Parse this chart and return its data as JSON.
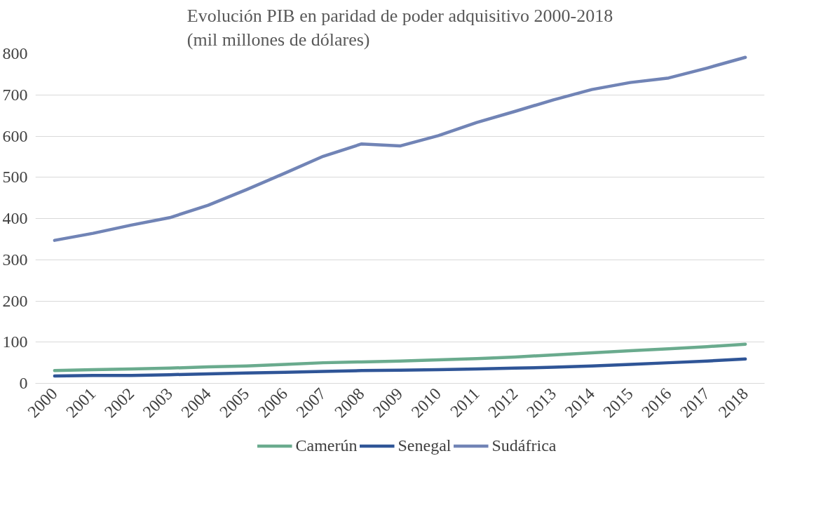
{
  "chart_data": {
    "type": "line",
    "title": "Evolución PIB en paridad de poder adquisitivo 2000-2018\n(mil millones de dólares)",
    "categories": [
      "2000",
      "2001",
      "2002",
      "2003",
      "2004",
      "2005",
      "2006",
      "2007",
      "2008",
      "2009",
      "2010",
      "2011",
      "2012",
      "2013",
      "2014",
      "2015",
      "2016",
      "2017",
      "2018"
    ],
    "series": [
      {
        "name": "Camerún",
        "color": "#6aab8e",
        "values": [
          31,
          33,
          35,
          37,
          40,
          42,
          46,
          50,
          52,
          54,
          57,
          60,
          64,
          69,
          74,
          79,
          84,
          89,
          95
        ]
      },
      {
        "name": "Senegal",
        "color": "#2f5597",
        "values": [
          18,
          19,
          19,
          21,
          23,
          25,
          27,
          29,
          31,
          32,
          33,
          35,
          37,
          39,
          42,
          46,
          50,
          54,
          59
        ]
      },
      {
        "name": "Sudáfrica",
        "color": "#7184b6",
        "values": [
          347,
          364,
          384,
          402,
          432,
          470,
          510,
          551,
          581,
          576,
          601,
          633,
          660,
          688,
          713,
          730,
          741,
          765,
          791
        ]
      }
    ],
    "ylim": [
      0,
      800
    ],
    "yticks": [
      0,
      100,
      200,
      300,
      400,
      500,
      600,
      700,
      800
    ],
    "grid": "y",
    "legend": "bottom",
    "marker": "none",
    "line_style": "solid"
  }
}
